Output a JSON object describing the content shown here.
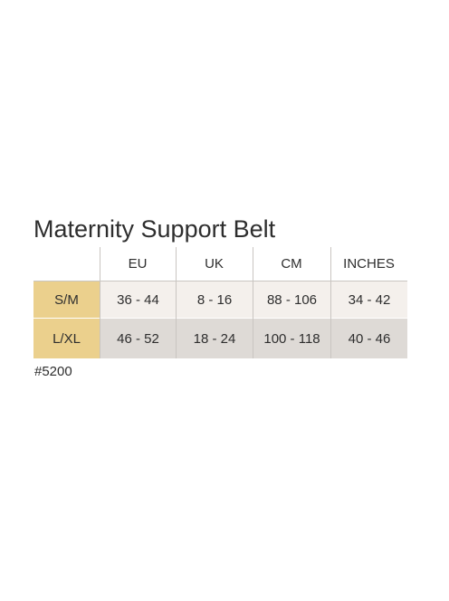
{
  "title": "Maternity Support Belt",
  "table": {
    "columns": [
      "EU",
      "UK",
      "CM",
      "INCHES"
    ],
    "rows": [
      [
        "S/M",
        "36 - 44",
        "8 - 16",
        "88 - 106",
        "34 - 42"
      ],
      [
        "L/XL",
        "46 - 52",
        "18 - 24",
        "100 - 118",
        "40 - 46"
      ]
    ]
  },
  "code": "#5200"
}
